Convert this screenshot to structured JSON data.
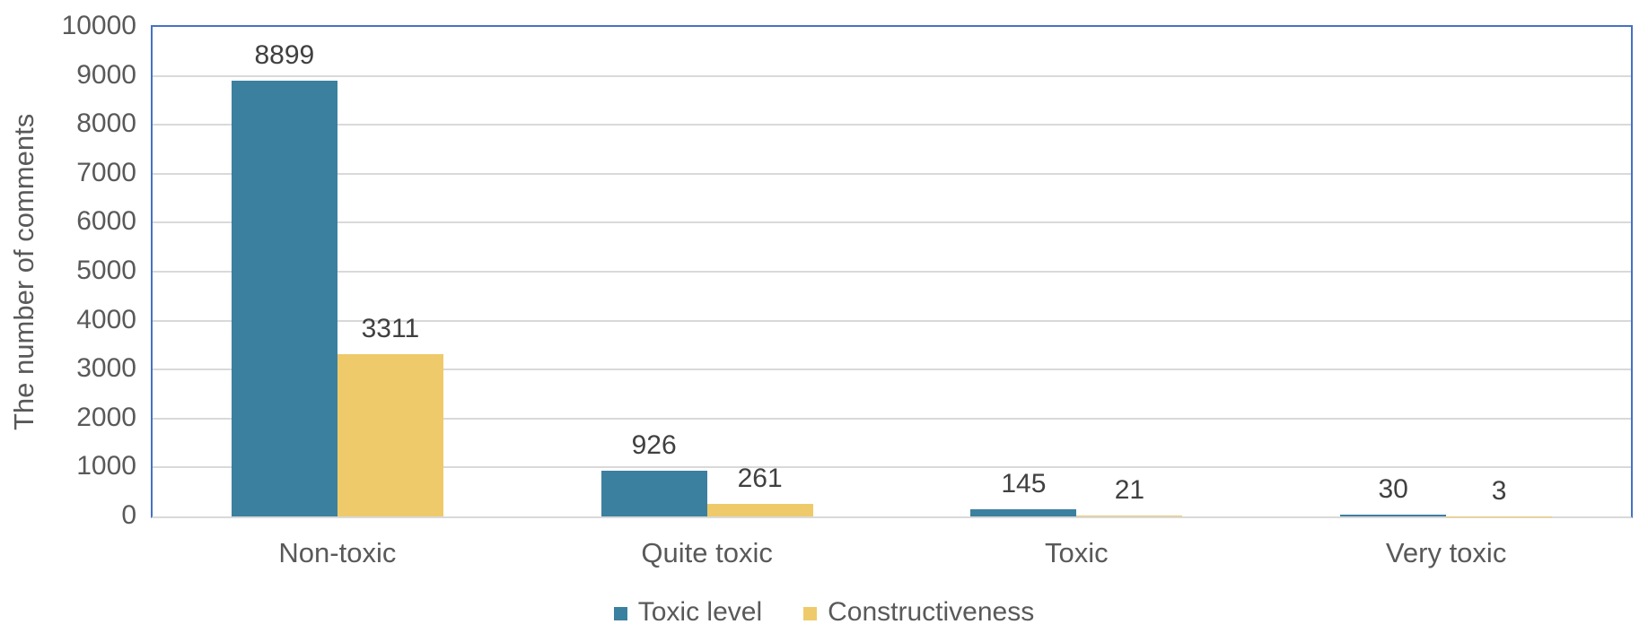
{
  "chart_data": {
    "type": "bar",
    "title": "",
    "xlabel": "",
    "ylabel": "The number of comments",
    "categories": [
      "Non-toxic",
      "Quite toxic",
      "Toxic",
      "Very toxic"
    ],
    "series": [
      {
        "name": "Toxic level",
        "color": "#3C80A0",
        "values": [
          8899,
          926,
          145,
          30
        ]
      },
      {
        "name": "Constructiveness",
        "color": "#EECA6B",
        "values": [
          3311,
          261,
          21,
          3
        ]
      }
    ],
    "ylim": [
      0,
      10000
    ],
    "ytick_step": 1000,
    "yticks": [
      0,
      1000,
      2000,
      3000,
      4000,
      5000,
      6000,
      7000,
      8000,
      9000,
      10000
    ],
    "grid": true,
    "data_labels": true,
    "legend_position": "bottom"
  },
  "colors": {
    "plot_border": "#4472C4",
    "gridline": "#D9D9D9",
    "axis_line": "#D9D9D9",
    "tick_label_text": "#595959",
    "data_label_text": "#404040",
    "background": "#FFFFFF"
  }
}
